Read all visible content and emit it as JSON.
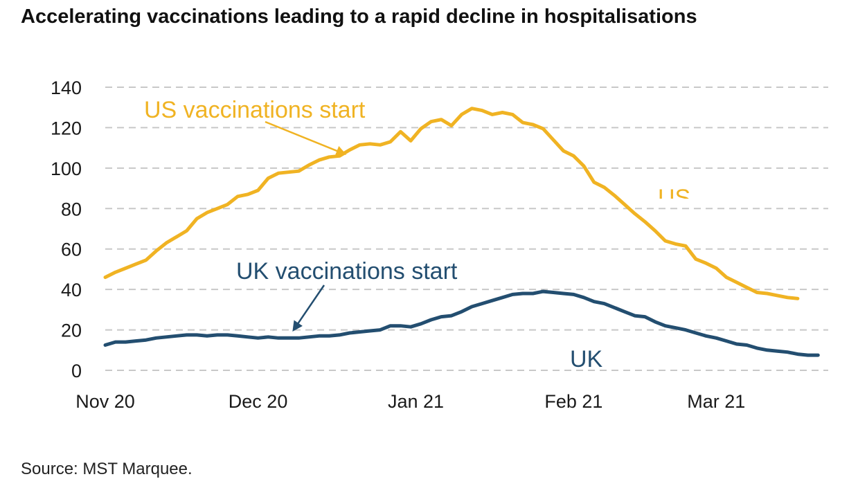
{
  "title": "Accelerating vaccinations leading to a rapid decline in hospitalisations",
  "source": "Source: MST Marquee.",
  "chart_data": {
    "type": "line",
    "ylim": [
      0,
      140
    ],
    "yticks": [
      0,
      20,
      40,
      60,
      80,
      100,
      120,
      140
    ],
    "xlim": [
      "2020-11-01",
      "2021-03-23"
    ],
    "x_tick_labels": [
      {
        "date": "2020-11-01",
        "label": "Nov 20"
      },
      {
        "date": "2020-12-01",
        "label": "Dec 20"
      },
      {
        "date": "2021-01-01",
        "label": "Jan 21"
      },
      {
        "date": "2021-02-01",
        "label": "Feb 21"
      },
      {
        "date": "2021-03-01",
        "label": "Mar 21"
      }
    ],
    "grid": true,
    "series": [
      {
        "name": "US",
        "color": "#f0b323",
        "points": [
          [
            "2020-11-01",
            46
          ],
          [
            "2020-11-03",
            48.5
          ],
          [
            "2020-11-05",
            50.5
          ],
          [
            "2020-11-07",
            52.5
          ],
          [
            "2020-11-09",
            54.5
          ],
          [
            "2020-11-11",
            59
          ],
          [
            "2020-11-13",
            63
          ],
          [
            "2020-11-15",
            66
          ],
          [
            "2020-11-17",
            69
          ],
          [
            "2020-11-19",
            75
          ],
          [
            "2020-11-21",
            78
          ],
          [
            "2020-11-23",
            80
          ],
          [
            "2020-11-25",
            82
          ],
          [
            "2020-11-27",
            86
          ],
          [
            "2020-11-29",
            87
          ],
          [
            "2020-12-01",
            89
          ],
          [
            "2020-12-03",
            95
          ],
          [
            "2020-12-05",
            97.5
          ],
          [
            "2020-12-07",
            98
          ],
          [
            "2020-12-09",
            98.5
          ],
          [
            "2020-12-11",
            101.5
          ],
          [
            "2020-12-13",
            104
          ],
          [
            "2020-12-15",
            105.5
          ],
          [
            "2020-12-17",
            106
          ],
          [
            "2020-12-19",
            109
          ],
          [
            "2020-12-21",
            111.5
          ],
          [
            "2020-12-23",
            112
          ],
          [
            "2020-12-25",
            111.5
          ],
          [
            "2020-12-27",
            113
          ],
          [
            "2020-12-29",
            118
          ],
          [
            "2020-12-31",
            113.5
          ],
          [
            "2021-01-02",
            119.5
          ],
          [
            "2021-01-04",
            123
          ],
          [
            "2021-01-06",
            124
          ],
          [
            "2021-01-08",
            121
          ],
          [
            "2021-01-10",
            126.5
          ],
          [
            "2021-01-12",
            129.5
          ],
          [
            "2021-01-14",
            128.5
          ],
          [
            "2021-01-16",
            126.5
          ],
          [
            "2021-01-18",
            127.5
          ],
          [
            "2021-01-20",
            126.5
          ],
          [
            "2021-01-22",
            122.5
          ],
          [
            "2021-01-24",
            121.5
          ],
          [
            "2021-01-26",
            119.5
          ],
          [
            "2021-01-28",
            114
          ],
          [
            "2021-01-30",
            108.5
          ],
          [
            "2021-02-01",
            106
          ],
          [
            "2021-02-03",
            101
          ],
          [
            "2021-02-05",
            93
          ],
          [
            "2021-02-07",
            90.5
          ],
          [
            "2021-02-09",
            86.5
          ],
          [
            "2021-02-11",
            82
          ],
          [
            "2021-02-13",
            77.5
          ],
          [
            "2021-02-15",
            73.5
          ],
          [
            "2021-02-17",
            69
          ],
          [
            "2021-02-19",
            64
          ],
          [
            "2021-02-21",
            62.5
          ],
          [
            "2021-02-23",
            61.5
          ],
          [
            "2021-02-25",
            55
          ],
          [
            "2021-02-27",
            53
          ],
          [
            "2021-03-01",
            50.5
          ],
          [
            "2021-03-03",
            46
          ],
          [
            "2021-03-05",
            43.5
          ],
          [
            "2021-03-07",
            41
          ],
          [
            "2021-03-09",
            38.5
          ],
          [
            "2021-03-11",
            38
          ],
          [
            "2021-03-13",
            37
          ],
          [
            "2021-03-15",
            36
          ],
          [
            "2021-03-17",
            35.5
          ]
        ]
      },
      {
        "name": "UK",
        "color": "#234e70",
        "points": [
          [
            "2020-11-01",
            12.5
          ],
          [
            "2020-11-03",
            14
          ],
          [
            "2020-11-05",
            14
          ],
          [
            "2020-11-07",
            14.5
          ],
          [
            "2020-11-09",
            15
          ],
          [
            "2020-11-11",
            16
          ],
          [
            "2020-11-13",
            16.5
          ],
          [
            "2020-11-15",
            17
          ],
          [
            "2020-11-17",
            17.5
          ],
          [
            "2020-11-19",
            17.5
          ],
          [
            "2020-11-21",
            17
          ],
          [
            "2020-11-23",
            17.5
          ],
          [
            "2020-11-25",
            17.5
          ],
          [
            "2020-11-27",
            17
          ],
          [
            "2020-11-29",
            16.5
          ],
          [
            "2020-12-01",
            16
          ],
          [
            "2020-12-03",
            16.5
          ],
          [
            "2020-12-05",
            16
          ],
          [
            "2020-12-07",
            16
          ],
          [
            "2020-12-09",
            16
          ],
          [
            "2020-12-11",
            16.5
          ],
          [
            "2020-12-13",
            17
          ],
          [
            "2020-12-15",
            17
          ],
          [
            "2020-12-17",
            17.5
          ],
          [
            "2020-12-19",
            18.5
          ],
          [
            "2020-12-21",
            19
          ],
          [
            "2020-12-23",
            19.5
          ],
          [
            "2020-12-25",
            20
          ],
          [
            "2020-12-27",
            22
          ],
          [
            "2020-12-29",
            22
          ],
          [
            "2020-12-31",
            21.5
          ],
          [
            "2021-01-02",
            23
          ],
          [
            "2021-01-04",
            25
          ],
          [
            "2021-01-06",
            26.5
          ],
          [
            "2021-01-08",
            27
          ],
          [
            "2021-01-10",
            29
          ],
          [
            "2021-01-12",
            31.5
          ],
          [
            "2021-01-14",
            33
          ],
          [
            "2021-01-16",
            34.5
          ],
          [
            "2021-01-18",
            36
          ],
          [
            "2021-01-20",
            37.5
          ],
          [
            "2021-01-22",
            38
          ],
          [
            "2021-01-24",
            38
          ],
          [
            "2021-01-26",
            39
          ],
          [
            "2021-01-28",
            38.5
          ],
          [
            "2021-01-30",
            38
          ],
          [
            "2021-02-01",
            37.5
          ],
          [
            "2021-02-03",
            36
          ],
          [
            "2021-02-05",
            34
          ],
          [
            "2021-02-07",
            33
          ],
          [
            "2021-02-09",
            31
          ],
          [
            "2021-02-11",
            29
          ],
          [
            "2021-02-13",
            27
          ],
          [
            "2021-02-15",
            26.5
          ],
          [
            "2021-02-17",
            24
          ],
          [
            "2021-02-19",
            22
          ],
          [
            "2021-02-21",
            21
          ],
          [
            "2021-02-23",
            20
          ],
          [
            "2021-02-25",
            18.5
          ],
          [
            "2021-02-27",
            17
          ],
          [
            "2021-03-01",
            16
          ],
          [
            "2021-03-03",
            14.5
          ],
          [
            "2021-03-05",
            13
          ],
          [
            "2021-03-07",
            12.5
          ],
          [
            "2021-03-09",
            11
          ],
          [
            "2021-03-11",
            10
          ],
          [
            "2021-03-13",
            9.5
          ],
          [
            "2021-03-15",
            9
          ],
          [
            "2021-03-17",
            8
          ],
          [
            "2021-03-19",
            7.5
          ],
          [
            "2021-03-21",
            7.5
          ]
        ]
      }
    ],
    "annotations": [
      {
        "text": "US vaccinations start",
        "color": "#f0b323",
        "arrow_to": [
          "2020-12-18",
          107
        ]
      },
      {
        "text": "UK vaccinations start",
        "color": "#234e70",
        "arrow_to": [
          "2020-12-08",
          20
        ]
      },
      {
        "text": "US",
        "color": "#f0b323"
      },
      {
        "text": "UK",
        "color": "#234e70"
      }
    ]
  }
}
